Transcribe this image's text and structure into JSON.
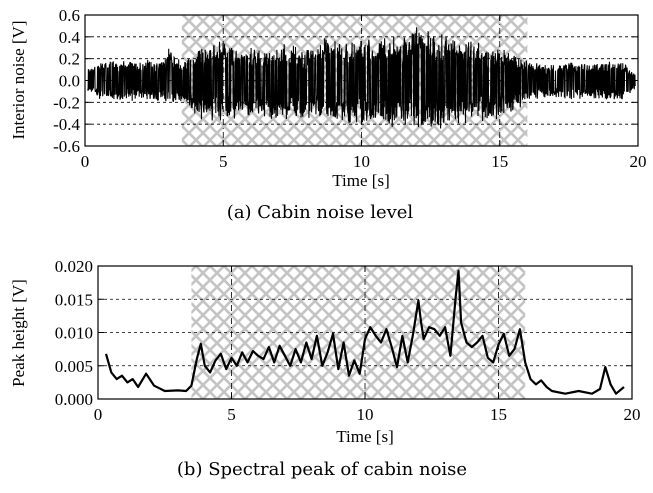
{
  "chart_data": [
    {
      "type": "line",
      "caption": "(a) Cabin noise level",
      "xlabel": "Time [s]",
      "ylabel": "Interior noise [V]",
      "xlim": [
        0,
        20
      ],
      "ylim": [
        -0.6,
        0.6
      ],
      "x_ticks": [
        0,
        5,
        10,
        15,
        20
      ],
      "x_tick_labels": [
        "0",
        "5",
        "10",
        "15",
        "20"
      ],
      "y_ticks": [
        -0.6,
        -0.4,
        -0.2,
        0.0,
        0.2,
        0.4,
        0.6
      ],
      "y_tick_labels": [
        "-0.6",
        "-0.4",
        "-0.2",
        "0.0",
        "0.2",
        "0.4",
        "0.6"
      ],
      "grid": "dashed",
      "hatched_region": [
        3.5,
        16.0
      ],
      "series": [
        {
          "x": [
            0.1,
            0.5,
            1.0,
            1.5,
            2.0,
            2.5,
            3.0,
            3.5,
            4.0,
            4.5,
            5.0,
            5.5,
            6.0,
            6.5,
            7.0,
            7.5,
            8.0,
            8.5,
            9.0,
            9.5,
            10.0,
            10.5,
            11.0,
            11.5,
            12.0,
            12.5,
            13.0,
            13.5,
            14.0,
            14.5,
            15.0,
            15.5,
            16.0,
            16.5,
            17.0,
            17.5,
            18.0,
            18.5,
            19.0,
            19.5,
            19.9
          ],
          "upper": [
            0.12,
            0.18,
            0.2,
            0.22,
            0.18,
            0.2,
            0.33,
            0.18,
            0.3,
            0.35,
            0.4,
            0.3,
            0.32,
            0.28,
            0.35,
            0.35,
            0.3,
            0.38,
            0.42,
            0.35,
            0.4,
            0.38,
            0.45,
            0.42,
            0.52,
            0.46,
            0.44,
            0.4,
            0.42,
            0.32,
            0.32,
            0.28,
            0.2,
            0.15,
            0.17,
            0.18,
            0.16,
            0.18,
            0.2,
            0.18,
            0.06
          ],
          "lower": [
            -0.12,
            -0.18,
            -0.2,
            -0.2,
            -0.18,
            -0.2,
            -0.22,
            -0.2,
            -0.35,
            -0.42,
            -0.4,
            -0.35,
            -0.38,
            -0.36,
            -0.38,
            -0.38,
            -0.36,
            -0.37,
            -0.4,
            -0.4,
            -0.42,
            -0.44,
            -0.46,
            -0.42,
            -0.48,
            -0.5,
            -0.45,
            -0.42,
            -0.4,
            -0.38,
            -0.38,
            -0.3,
            -0.22,
            -0.18,
            -0.18,
            -0.19,
            -0.17,
            -0.19,
            -0.2,
            -0.19,
            -0.08
          ]
        }
      ]
    },
    {
      "type": "line",
      "caption": "(b) Spectral peak of cabin noise",
      "xlabel": "Time [s]",
      "ylabel": "Peak height [V]",
      "xlim": [
        0,
        20
      ],
      "ylim": [
        0.0,
        0.02
      ],
      "x_ticks": [
        0,
        5,
        10,
        15,
        20
      ],
      "x_tick_labels": [
        "0",
        "5",
        "10",
        "15",
        "20"
      ],
      "y_ticks": [
        0.0,
        0.005,
        0.01,
        0.015,
        0.02
      ],
      "y_tick_labels": [
        "0.000",
        "0.005",
        "0.010",
        "0.015",
        "0.020"
      ],
      "grid": "dashed",
      "hatched_region": [
        3.5,
        16.0
      ],
      "series": [
        {
          "x": [
            0.3,
            0.5,
            0.7,
            0.9,
            1.1,
            1.3,
            1.5,
            1.8,
            2.1,
            2.5,
            3.0,
            3.3,
            3.5,
            3.7,
            3.85,
            4.0,
            4.2,
            4.4,
            4.6,
            4.8,
            5.0,
            5.2,
            5.4,
            5.6,
            5.8,
            6.0,
            6.2,
            6.4,
            6.6,
            6.8,
            7.0,
            7.2,
            7.4,
            7.6,
            7.8,
            8.0,
            8.2,
            8.4,
            8.6,
            8.8,
            9.0,
            9.2,
            9.4,
            9.6,
            9.8,
            10.0,
            10.2,
            10.4,
            10.6,
            10.8,
            11.0,
            11.2,
            11.4,
            11.6,
            11.8,
            12.0,
            12.1,
            12.2,
            12.4,
            12.6,
            12.8,
            13.0,
            13.2,
            13.4,
            13.5,
            13.6,
            13.8,
            14.0,
            14.2,
            14.4,
            14.6,
            14.8,
            15.0,
            15.2,
            15.4,
            15.6,
            15.8,
            16.0,
            16.2,
            16.4,
            16.6,
            16.8,
            17.0,
            17.5,
            18.0,
            18.5,
            18.8,
            19.0,
            19.2,
            19.4,
            19.7
          ],
          "y": [
            0.0068,
            0.004,
            0.003,
            0.0035,
            0.0025,
            0.003,
            0.0018,
            0.0038,
            0.002,
            0.0012,
            0.0013,
            0.0012,
            0.002,
            0.006,
            0.0083,
            0.005,
            0.004,
            0.0058,
            0.0068,
            0.0045,
            0.0062,
            0.005,
            0.007,
            0.0055,
            0.0072,
            0.0065,
            0.006,
            0.0078,
            0.0055,
            0.008,
            0.0065,
            0.005,
            0.0075,
            0.0055,
            0.0085,
            0.006,
            0.0095,
            0.005,
            0.007,
            0.0098,
            0.0045,
            0.0085,
            0.0035,
            0.0058,
            0.0038,
            0.009,
            0.0108,
            0.0095,
            0.0085,
            0.0105,
            0.0078,
            0.0048,
            0.0095,
            0.0055,
            0.0098,
            0.0148,
            0.0115,
            0.009,
            0.0108,
            0.0105,
            0.0095,
            0.0108,
            0.0065,
            0.0155,
            0.0193,
            0.0115,
            0.0085,
            0.0078,
            0.0085,
            0.0095,
            0.0062,
            0.0055,
            0.0082,
            0.0098,
            0.0065,
            0.0075,
            0.0105,
            0.0055,
            0.003,
            0.0022,
            0.0028,
            0.0018,
            0.0012,
            0.0008,
            0.0012,
            0.0008,
            0.0015,
            0.0048,
            0.0022,
            0.0008,
            0.0018
          ]
        }
      ]
    }
  ]
}
